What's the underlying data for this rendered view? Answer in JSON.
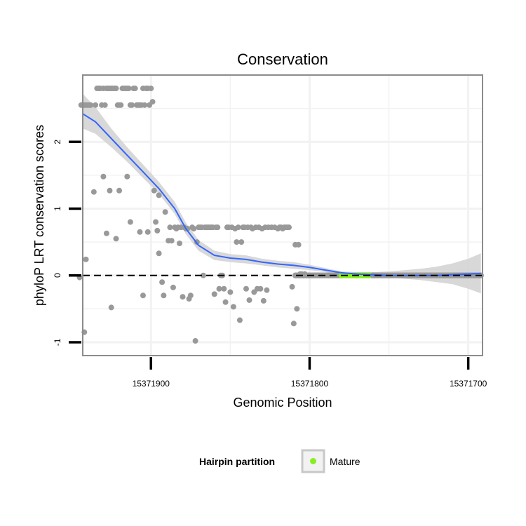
{
  "chart_data": {
    "type": "scatter",
    "title": "Conservation",
    "xlabel": "Genomic Position",
    "ylabel": "phyloP LRT conservation scores",
    "x_reversed": true,
    "xlim": [
      15371943,
      15371691
    ],
    "ylim": [
      -1.2,
      3.0
    ],
    "x_ticks": [
      15371900,
      15371800,
      15371700
    ],
    "x_tick_labels": [
      "15371900",
      "15371800",
      "15371700"
    ],
    "y_ticks": [
      -1,
      0,
      1,
      2
    ],
    "y_tick_labels": [
      "-1",
      "0",
      "1",
      "2"
    ],
    "grid": true,
    "reference_line": {
      "y": 0,
      "style": "dashed",
      "color": "#000000"
    },
    "colors": {
      "points": "#999999",
      "smooth": "#3366ff",
      "ribbon": "#d4d4d4",
      "mature": "#88ee22",
      "panel_border": "#8c8c8c",
      "grid": "#f2f2f2"
    },
    "points": [
      {
        "x": 15371944,
        "y": 2.55
      },
      {
        "x": 15371943,
        "y": 2.55
      },
      {
        "x": 15371942,
        "y": 2.55
      },
      {
        "x": 15371941,
        "y": 2.55
      },
      {
        "x": 15371940,
        "y": 2.55
      },
      {
        "x": 15371939,
        "y": 2.55
      },
      {
        "x": 15371938,
        "y": 2.55
      },
      {
        "x": 15371935,
        "y": 2.55
      },
      {
        "x": 15371934,
        "y": 2.8
      },
      {
        "x": 15371933,
        "y": 2.8
      },
      {
        "x": 15371932,
        "y": 2.8
      },
      {
        "x": 15371931,
        "y": 2.55
      },
      {
        "x": 15371930,
        "y": 2.8
      },
      {
        "x": 15371929,
        "y": 2.55
      },
      {
        "x": 15371928,
        "y": 2.8
      },
      {
        "x": 15371927,
        "y": 2.8
      },
      {
        "x": 15371926,
        "y": 2.8
      },
      {
        "x": 15371925,
        "y": 2.8
      },
      {
        "x": 15371924,
        "y": 2.8
      },
      {
        "x": 15371923,
        "y": 2.8
      },
      {
        "x": 15371922,
        "y": 2.8
      },
      {
        "x": 15371921,
        "y": 2.55
      },
      {
        "x": 15371920,
        "y": 2.55
      },
      {
        "x": 15371919,
        "y": 2.55
      },
      {
        "x": 15371918,
        "y": 2.8
      },
      {
        "x": 15371917,
        "y": 2.8
      },
      {
        "x": 15371916,
        "y": 2.8
      },
      {
        "x": 15371915,
        "y": 2.8
      },
      {
        "x": 15371914,
        "y": 2.8
      },
      {
        "x": 15371913,
        "y": 2.55
      },
      {
        "x": 15371912,
        "y": 2.55
      },
      {
        "x": 15371911,
        "y": 2.8
      },
      {
        "x": 15371910,
        "y": 2.8
      },
      {
        "x": 15371909,
        "y": 2.55
      },
      {
        "x": 15371908,
        "y": 2.55
      },
      {
        "x": 15371907,
        "y": 2.55
      },
      {
        "x": 15371906,
        "y": 2.55
      },
      {
        "x": 15371905,
        "y": 2.8
      },
      {
        "x": 15371904,
        "y": 2.55
      },
      {
        "x": 15371903,
        "y": 2.8
      },
      {
        "x": 15371902,
        "y": 2.8
      },
      {
        "x": 15371901,
        "y": 2.55
      },
      {
        "x": 15371900,
        "y": 2.8
      },
      {
        "x": 15371899,
        "y": 2.6
      },
      {
        "x": 15371945,
        "y": -0.03
      },
      {
        "x": 15371942,
        "y": -0.85
      },
      {
        "x": 15371941,
        "y": 0.24
      },
      {
        "x": 15371936,
        "y": 1.25
      },
      {
        "x": 15371930,
        "y": 1.48
      },
      {
        "x": 15371928,
        "y": 0.63
      },
      {
        "x": 15371926,
        "y": 1.27
      },
      {
        "x": 15371925,
        "y": -0.48
      },
      {
        "x": 15371922,
        "y": 0.55
      },
      {
        "x": 15371920,
        "y": 1.27
      },
      {
        "x": 15371915,
        "y": 1.48
      },
      {
        "x": 15371913,
        "y": 0.8
      },
      {
        "x": 15371907,
        "y": 0.65
      },
      {
        "x": 15371905,
        "y": -0.3
      },
      {
        "x": 15371902,
        "y": 0.65
      },
      {
        "x": 15371898,
        "y": 1.27
      },
      {
        "x": 15371897,
        "y": 0.8
      },
      {
        "x": 15371896,
        "y": 0.67
      },
      {
        "x": 15371895,
        "y": 1.2
      },
      {
        "x": 15371895,
        "y": 0.33
      },
      {
        "x": 15371893,
        "y": -0.1
      },
      {
        "x": 15371892,
        "y": -0.3
      },
      {
        "x": 15371891,
        "y": 0.95
      },
      {
        "x": 15371889,
        "y": 0.52
      },
      {
        "x": 15371888,
        "y": 0.72
      },
      {
        "x": 15371887,
        "y": 0.52
      },
      {
        "x": 15371886,
        "y": -0.18
      },
      {
        "x": 15371885,
        "y": 0.72
      },
      {
        "x": 15371884,
        "y": 0.7
      },
      {
        "x": 15371883,
        "y": 0.72
      },
      {
        "x": 15371882,
        "y": 0.48
      },
      {
        "x": 15371881,
        "y": 0.72
      },
      {
        "x": 15371880,
        "y": -0.32
      },
      {
        "x": 15371879,
        "y": 0.72
      },
      {
        "x": 15371878,
        "y": 0.7
      },
      {
        "x": 15371877,
        "y": 0.7
      },
      {
        "x": 15371876,
        "y": -0.35
      },
      {
        "x": 15371875,
        "y": -0.3
      },
      {
        "x": 15371874,
        "y": 0.72
      },
      {
        "x": 15371873,
        "y": 0.7
      },
      {
        "x": 15371872,
        "y": -0.98
      },
      {
        "x": 15371871,
        "y": 0.5
      },
      {
        "x": 15371870,
        "y": 0.72
      },
      {
        "x": 15371869,
        "y": 0.72
      },
      {
        "x": 15371868,
        "y": 0.72
      },
      {
        "x": 15371867,
        "y": 0.0
      },
      {
        "x": 15371866,
        "y": 0.72
      },
      {
        "x": 15371865,
        "y": 0.72
      },
      {
        "x": 15371864,
        "y": 0.72
      },
      {
        "x": 15371863,
        "y": 0.72
      },
      {
        "x": 15371862,
        "y": 0.72
      },
      {
        "x": 15371861,
        "y": 0.72
      },
      {
        "x": 15371860,
        "y": -0.28
      },
      {
        "x": 15371859,
        "y": 0.72
      },
      {
        "x": 15371858,
        "y": 0.72
      },
      {
        "x": 15371857,
        "y": -0.2
      },
      {
        "x": 15371856,
        "y": 0.0
      },
      {
        "x": 15371855,
        "y": 0.0
      },
      {
        "x": 15371854,
        "y": -0.2
      },
      {
        "x": 15371853,
        "y": -0.4
      },
      {
        "x": 15371852,
        "y": 0.72
      },
      {
        "x": 15371851,
        "y": 0.72
      },
      {
        "x": 15371850,
        "y": -0.25
      },
      {
        "x": 15371849,
        "y": 0.72
      },
      {
        "x": 15371848,
        "y": -0.47
      },
      {
        "x": 15371847,
        "y": 0.7
      },
      {
        "x": 15371846,
        "y": 0.5
      },
      {
        "x": 15371845,
        "y": 0.72
      },
      {
        "x": 15371844,
        "y": -0.67
      },
      {
        "x": 15371843,
        "y": 0.5
      },
      {
        "x": 15371842,
        "y": 0.72
      },
      {
        "x": 15371841,
        "y": 0.72
      },
      {
        "x": 15371840,
        "y": -0.2
      },
      {
        "x": 15371839,
        "y": 0.72
      },
      {
        "x": 15371838,
        "y": -0.37
      },
      {
        "x": 15371837,
        "y": 0.72
      },
      {
        "x": 15371836,
        "y": 0.7
      },
      {
        "x": 15371835,
        "y": -0.25
      },
      {
        "x": 15371834,
        "y": 0.72
      },
      {
        "x": 15371833,
        "y": -0.2
      },
      {
        "x": 15371832,
        "y": 0.72
      },
      {
        "x": 15371831,
        "y": -0.2
      },
      {
        "x": 15371830,
        "y": 0.7
      },
      {
        "x": 15371829,
        "y": -0.38
      },
      {
        "x": 15371828,
        "y": 0.72
      },
      {
        "x": 15371827,
        "y": -0.22
      },
      {
        "x": 15371826,
        "y": 0.72
      },
      {
        "x": 15371824,
        "y": 0.72
      },
      {
        "x": 15371822,
        "y": 0.72
      },
      {
        "x": 15371820,
        "y": 0.7
      },
      {
        "x": 15371819,
        "y": 0.72
      },
      {
        "x": 15371818,
        "y": 0.72
      },
      {
        "x": 15371817,
        "y": 0.7
      },
      {
        "x": 15371816,
        "y": 0.72
      },
      {
        "x": 15371815,
        "y": 0.72
      },
      {
        "x": 15371814,
        "y": 0.72
      },
      {
        "x": 15371813,
        "y": 0.72
      },
      {
        "x": 15371811,
        "y": -0.17
      },
      {
        "x": 15371810,
        "y": -0.72
      },
      {
        "x": 15371809,
        "y": 0.46
      },
      {
        "x": 15371808,
        "y": -0.5
      },
      {
        "x": 15371807,
        "y": 0.46
      },
      {
        "x": 15371806,
        "y": 0.02
      },
      {
        "x": 15371805,
        "y": 0.02
      },
      {
        "x": 15371804,
        "y": 0.0
      },
      {
        "x": 15371803,
        "y": 0.02
      },
      {
        "x": 15371802,
        "y": 0.0
      }
    ],
    "flat_point_segments": [
      {
        "series": "other",
        "x_start": 15371809,
        "x_end": 15371780,
        "y": 0.0
      },
      {
        "series": "mature",
        "x_start": 15371780,
        "x_end": 15371760,
        "y": 0.0
      },
      {
        "series": "other",
        "x_start": 15371760,
        "x_end": 15371692,
        "y": 0.0
      }
    ],
    "smooth_line": {
      "x": [
        15371943,
        15371935,
        15371925,
        15371915,
        15371905,
        15371895,
        15371885,
        15371878,
        15371870,
        15371860,
        15371850,
        15371840,
        15371830,
        15371820,
        15371810,
        15371800,
        15371790,
        15371780,
        15371770,
        15371760,
        15371750,
        15371740,
        15371730,
        15371720,
        15371710,
        15371700,
        15371692
      ],
      "y": [
        2.42,
        2.3,
        2.05,
        1.8,
        1.55,
        1.3,
        1.0,
        0.7,
        0.45,
        0.3,
        0.26,
        0.24,
        0.2,
        0.17,
        0.15,
        0.12,
        0.08,
        0.04,
        0.02,
        0.01,
        0.0,
        0.0,
        0.0,
        0.0,
        0.01,
        0.02,
        0.03
      ],
      "ci_low": [
        2.2,
        2.12,
        1.92,
        1.7,
        1.46,
        1.22,
        0.92,
        0.62,
        0.37,
        0.23,
        0.2,
        0.18,
        0.15,
        0.12,
        0.1,
        0.08,
        0.05,
        0.02,
        0.0,
        -0.01,
        -0.03,
        -0.05,
        -0.07,
        -0.1,
        -0.13,
        -0.2,
        -0.27
      ],
      "ci_high": [
        2.72,
        2.52,
        2.2,
        1.92,
        1.66,
        1.4,
        1.1,
        0.79,
        0.53,
        0.37,
        0.32,
        0.3,
        0.25,
        0.22,
        0.2,
        0.16,
        0.11,
        0.06,
        0.05,
        0.05,
        0.06,
        0.08,
        0.1,
        0.13,
        0.18,
        0.25,
        0.33
      ]
    },
    "legend": {
      "title": "Hairpin partition",
      "entries": [
        {
          "label": "Mature",
          "color": "#88ee22"
        }
      ],
      "placement": "bottom"
    }
  }
}
